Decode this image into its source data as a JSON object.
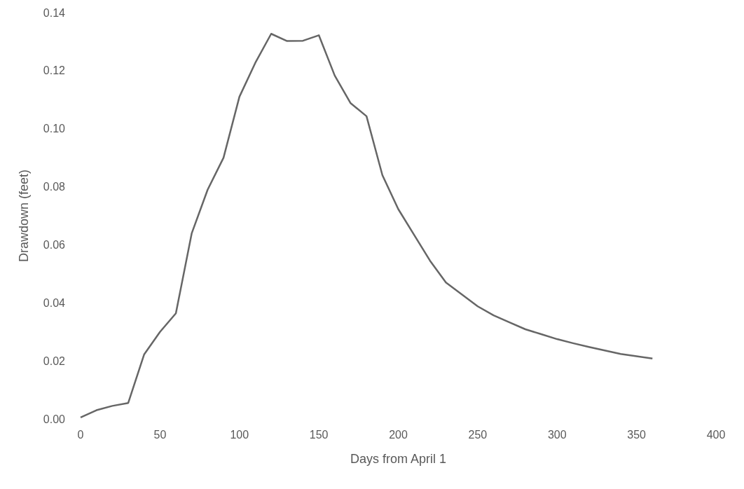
{
  "chart_data": {
    "type": "line",
    "xlabel": "Days from April 1",
    "ylabel": "Drawdown (feet)",
    "x": [
      0,
      10,
      20,
      30,
      40,
      50,
      60,
      70,
      80,
      90,
      100,
      110,
      120,
      130,
      140,
      150,
      160,
      170,
      180,
      190,
      200,
      210,
      220,
      230,
      240,
      250,
      260,
      270,
      280,
      290,
      300,
      310,
      320,
      330,
      340,
      350,
      360
    ],
    "series": [
      {
        "color": "#666666",
        "values": [
          0.0005,
          0.003,
          0.0045,
          0.0055,
          0.0222,
          0.03,
          0.0364,
          0.064,
          0.079,
          0.09,
          0.111,
          0.1227,
          0.1327,
          0.1302,
          0.1303,
          0.1322,
          0.1183,
          0.1088,
          0.1043,
          0.084,
          0.0723,
          0.0634,
          0.0545,
          0.047,
          0.0429,
          0.0388,
          0.0357,
          0.0333,
          0.0309,
          0.0292,
          0.0275,
          0.0261,
          0.0248,
          0.0236,
          0.0224,
          0.0216,
          0.0208
        ]
      }
    ],
    "xlim": [
      0,
      400
    ],
    "xticks": [
      0,
      50,
      100,
      150,
      200,
      250,
      300,
      350,
      400
    ],
    "ylim": [
      0,
      0.14
    ],
    "yticks": [
      {
        "value": 0,
        "label": "0.00"
      },
      {
        "value": 0.02,
        "label": "0.02"
      },
      {
        "value": 0.04,
        "label": "0.04"
      },
      {
        "value": 0.06,
        "label": "0.06"
      },
      {
        "value": 0.08,
        "label": "0.08"
      },
      {
        "value": 0.1,
        "label": "0.10"
      },
      {
        "value": 0.12,
        "label": "0.12"
      },
      {
        "value": 0.14,
        "label": "0.14"
      }
    ],
    "marker": "none",
    "line_style": "solid"
  }
}
